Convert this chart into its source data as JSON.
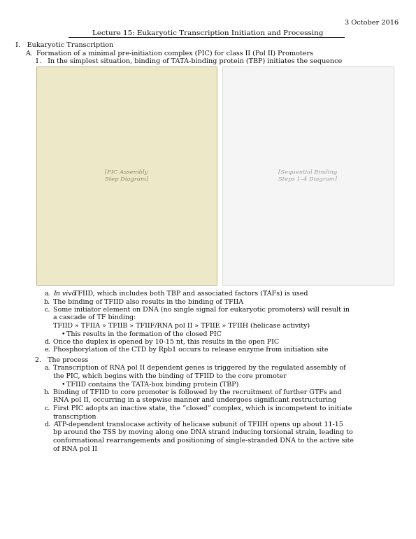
{
  "date": "3 October 2016",
  "title": "Lecture 15: Eukaryotic Transcription Initiation and Processing",
  "section_I": "I.   Eukaryotic Transcription",
  "section_A": "A.  Formation of a minimal pre-initiation complex (PIC) for class II (Pol II) Promoters",
  "section_1": "1.   In the simplest situation, binding of TATA-binding protein (TBP) initiates the sequence",
  "items_1": [
    {
      "label": "a.",
      "italic": "In vivo",
      "rest": " TFIID, which includes both TBP and associated factors (TAFs) is used",
      "lines": [],
      "sub": []
    },
    {
      "label": "b.",
      "lines": [
        "The binding of TFIID also results in the binding of TFIIA"
      ],
      "sub": []
    },
    {
      "label": "c.",
      "lines": [
        "Some initiator element on DNA (no single signal for eukaryotic promoters) will result in",
        "a cascade of TF binding:",
        "TFIID » TFIIA » TFIIB » TFIIF/RNA pol II » TFIIE » TFIIH (helicase activity)"
      ],
      "sub": [
        "This results in the formation of the closed PIC"
      ]
    },
    {
      "label": "d.",
      "lines": [
        "Once the duplex is opened by 10-15 nt, this results in the open PIC"
      ],
      "sub": []
    },
    {
      "label": "e.",
      "lines": [
        "Phosphorylation of the CTD by Rpb1 occurs to release enzyme from initiation site"
      ],
      "sub": []
    }
  ],
  "section_2": "2.   The process",
  "items_2": [
    {
      "label": "a.",
      "lines": [
        "Transcription of RNA pol II dependent genes is triggered by the regulated assembly of",
        "the PIC, which begins with the binding of TFIID to the core promoter"
      ],
      "sub": [
        "TFIID contains the TATA-box binding protein (TBP)"
      ]
    },
    {
      "label": "b.",
      "lines": [
        "Binding of TFIID to core promoter is followed by the recruitment of further GTFs and",
        "RNA pol II, occurring in a stepwise manner and undergoes significant restructuring"
      ],
      "sub": []
    },
    {
      "label": "c.",
      "lines": [
        "First PIC adopts an inactive state, the “closed” complex, which is incompetent to initiate",
        "transcription"
      ],
      "sub": []
    },
    {
      "label": "d.",
      "lines": [
        "ATP-dependent translocase activity of helicase subunit of TFIIH opens up about 11-15",
        "bp around the TSS by moving along one DNA strand inducing torsional strain, leading to",
        "conformational rearrangements and positioning of single-stranded DNA to the active site",
        "of RNA pol II"
      ],
      "sub": []
    }
  ],
  "bg_color": "#ffffff",
  "text_color": "#111111",
  "image_bg_left": "#ede8c8",
  "image_bg_right": "#f5f5f5",
  "fs": 6.8,
  "title_fs": 7.5,
  "lh": 11.5
}
